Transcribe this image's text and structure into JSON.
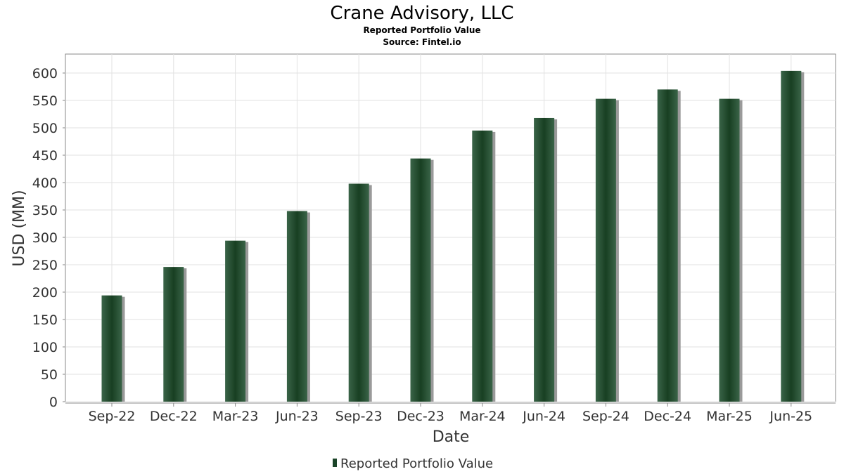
{
  "chart_data": {
    "type": "bar",
    "title": "Crane Advisory, LLC",
    "subtitle": "Reported Portfolio Value",
    "source": "Source: Fintel.io",
    "xlabel": "Date",
    "ylabel": "USD (MM)",
    "ylim": [
      0,
      600
    ],
    "yticks": [
      0,
      50,
      100,
      150,
      200,
      250,
      300,
      350,
      400,
      450,
      500,
      550,
      600
    ],
    "grid": true,
    "legend_position": "bottom-center",
    "categories": [
      "Sep-22",
      "Dec-22",
      "Mar-23",
      "Jun-23",
      "Sep-23",
      "Dec-23",
      "Mar-24",
      "Jun-24",
      "Sep-24",
      "Dec-24",
      "Mar-25",
      "Jun-25"
    ],
    "series": [
      {
        "name": "Reported Portfolio Value",
        "color": "#1b4428",
        "values": [
          194,
          246,
          294,
          348,
          398,
          444,
          495,
          518,
          553,
          570,
          553,
          604
        ]
      }
    ]
  }
}
